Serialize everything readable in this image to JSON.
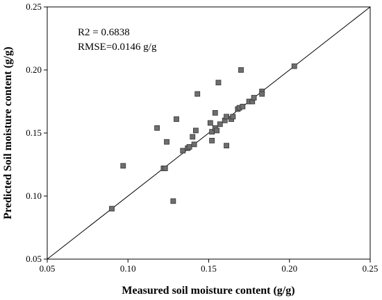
{
  "chart_data": {
    "type": "scatter",
    "xlabel": "Measured soil moisture content (g/g)",
    "ylabel": "Predicted Soil moisture content (g/g)",
    "xlim": [
      0.05,
      0.25
    ],
    "ylim": [
      0.05,
      0.25
    ],
    "x_ticks": [
      "0.05",
      "0.10",
      "0.15",
      "0.20",
      "0.25"
    ],
    "y_ticks": [
      "0.05",
      "0.10",
      "0.15",
      "0.20",
      "0.25"
    ],
    "grid": false,
    "reference_line": "1:1",
    "annotations": [
      "R2 = 0.6838",
      "RMSE=0.0146 g/g"
    ],
    "marker_color": "#6e6e6e",
    "points": [
      {
        "x": 0.09,
        "y": 0.09
      },
      {
        "x": 0.097,
        "y": 0.124
      },
      {
        "x": 0.118,
        "y": 0.154
      },
      {
        "x": 0.122,
        "y": 0.122
      },
      {
        "x": 0.123,
        "y": 0.122
      },
      {
        "x": 0.124,
        "y": 0.143
      },
      {
        "x": 0.128,
        "y": 0.096
      },
      {
        "x": 0.13,
        "y": 0.161
      },
      {
        "x": 0.134,
        "y": 0.136
      },
      {
        "x": 0.137,
        "y": 0.138
      },
      {
        "x": 0.138,
        "y": 0.139
      },
      {
        "x": 0.14,
        "y": 0.147
      },
      {
        "x": 0.141,
        "y": 0.141
      },
      {
        "x": 0.142,
        "y": 0.152
      },
      {
        "x": 0.143,
        "y": 0.181
      },
      {
        "x": 0.151,
        "y": 0.158
      },
      {
        "x": 0.152,
        "y": 0.151
      },
      {
        "x": 0.152,
        "y": 0.144
      },
      {
        "x": 0.154,
        "y": 0.154
      },
      {
        "x": 0.154,
        "y": 0.166
      },
      {
        "x": 0.155,
        "y": 0.152
      },
      {
        "x": 0.156,
        "y": 0.19
      },
      {
        "x": 0.157,
        "y": 0.157
      },
      {
        "x": 0.16,
        "y": 0.16
      },
      {
        "x": 0.161,
        "y": 0.14
      },
      {
        "x": 0.161,
        "y": 0.163
      },
      {
        "x": 0.164,
        "y": 0.161
      },
      {
        "x": 0.165,
        "y": 0.163
      },
      {
        "x": 0.168,
        "y": 0.169
      },
      {
        "x": 0.169,
        "y": 0.17
      },
      {
        "x": 0.17,
        "y": 0.2
      },
      {
        "x": 0.171,
        "y": 0.171
      },
      {
        "x": 0.175,
        "y": 0.175
      },
      {
        "x": 0.177,
        "y": 0.175
      },
      {
        "x": 0.178,
        "y": 0.178
      },
      {
        "x": 0.183,
        "y": 0.183
      },
      {
        "x": 0.183,
        "y": 0.181
      },
      {
        "x": 0.203,
        "y": 0.203
      }
    ]
  }
}
